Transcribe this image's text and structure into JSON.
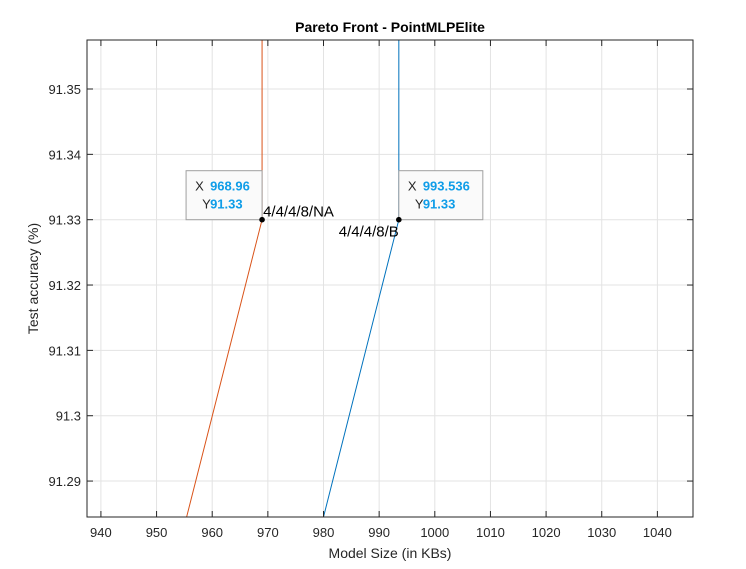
{
  "chart_data": {
    "type": "line",
    "title": "Pareto Front - PointMLPElite",
    "xlabel": "Model Size (in KBs)",
    "ylabel": "Test accuracy (%)",
    "xlim": [
      937.5,
      1046.4
    ],
    "ylim": [
      91.2845,
      91.3575
    ],
    "x_ticks": [
      940,
      950,
      960,
      970,
      980,
      990,
      1000,
      1010,
      1020,
      1030,
      1040
    ],
    "y_ticks": [
      91.29,
      91.3,
      91.31,
      91.32,
      91.33,
      91.34,
      91.35
    ],
    "x_tick_labels": [
      "940",
      "950",
      "960",
      "970",
      "980",
      "990",
      "1000",
      "1010",
      "1020",
      "1030",
      "1040"
    ],
    "y_tick_labels": [
      "91.29",
      "91.3",
      "91.31",
      "91.32",
      "91.33",
      "91.34",
      "91.35"
    ],
    "grid": true,
    "series": [
      {
        "color": "#0072BD",
        "points": [
          [
            980.0,
            91.2845
          ],
          [
            993.536,
            91.33
          ],
          [
            993.536,
            91.3575
          ]
        ]
      },
      {
        "color": "#D95319",
        "points": [
          [
            955.4,
            91.2845
          ],
          [
            968.96,
            91.33
          ],
          [
            968.96,
            91.3575
          ]
        ]
      }
    ],
    "annotations": [
      {
        "text": "4/4/4/8/NA",
        "x": 968.96,
        "y": 91.33,
        "anchor": "start"
      },
      {
        "text": "4/4/4/8/B",
        "x": 993.536,
        "y": 91.33,
        "anchor": "end"
      }
    ],
    "datatips": [
      {
        "x_key": "X",
        "y_key": "Y",
        "x_value": "968.96",
        "y_value": "91.33",
        "x": 968.96,
        "y": 91.33,
        "side": "left"
      },
      {
        "x_key": "X",
        "y_key": "Y",
        "x_value": "993.536",
        "y_value": "91.33",
        "x": 993.536,
        "y": 91.33,
        "side": "right"
      }
    ],
    "datatip_value_color": "#0F9DE8"
  }
}
